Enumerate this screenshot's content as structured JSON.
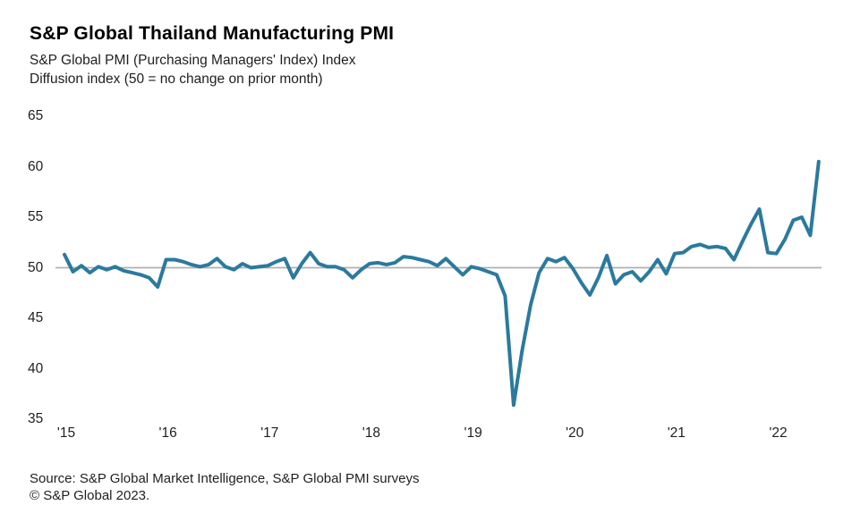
{
  "title": "S&P Global Thailand Manufacturing PMI",
  "subtitle_line1": "S&P Global PMI (Purchasing Managers' Index) Index",
  "subtitle_line2": "Diffusion index (50 = no change on prior month)",
  "source_line1": "Source: S&P Global Market Intelligence, S&P Global PMI surveys",
  "source_line2": "© S&P Global 2023.",
  "chart_data": {
    "type": "line",
    "title": "S&P Global Thailand Manufacturing PMI",
    "ylabel": "Diffusion index (50 = no change on prior month)",
    "ylim": [
      35,
      65
    ],
    "y_ticks": [
      65,
      60,
      55,
      50,
      45,
      40,
      35
    ],
    "x_tick_labels": [
      "'15",
      "'16",
      "'17",
      "'18",
      "'19",
      "'20",
      "'21",
      "'22"
    ],
    "months_per_tick": 12,
    "reference_line": 50,
    "grid": "single horizontal reference line at 50",
    "legend_position": "none",
    "line_color": "#2b7a9e",
    "grid_color": "#b0b0b0",
    "x": [
      "2015-01",
      "2015-02",
      "2015-03",
      "2015-04",
      "2015-05",
      "2015-06",
      "2015-07",
      "2015-08",
      "2015-09",
      "2015-10",
      "2015-11",
      "2015-12",
      "2016-01",
      "2016-02",
      "2016-03",
      "2016-04",
      "2016-05",
      "2016-06",
      "2016-07",
      "2016-08",
      "2016-09",
      "2016-10",
      "2016-11",
      "2016-12",
      "2017-01",
      "2017-02",
      "2017-03",
      "2017-04",
      "2017-05",
      "2017-06",
      "2017-07",
      "2017-08",
      "2017-09",
      "2017-10",
      "2017-11",
      "2017-12",
      "2018-01",
      "2018-02",
      "2018-03",
      "2018-04",
      "2018-05",
      "2018-06",
      "2018-07",
      "2018-08",
      "2018-09",
      "2018-10",
      "2018-11",
      "2018-12",
      "2019-01",
      "2019-02",
      "2019-03",
      "2019-04",
      "2019-05",
      "2019-06",
      "2019-07",
      "2019-08",
      "2019-09",
      "2019-10",
      "2019-11",
      "2019-12",
      "2020-01",
      "2020-02",
      "2020-03",
      "2020-04",
      "2020-05",
      "2020-06",
      "2020-07",
      "2020-08",
      "2020-09",
      "2020-10",
      "2020-11",
      "2020-12",
      "2021-01",
      "2021-02",
      "2021-03",
      "2021-04",
      "2021-05",
      "2021-06",
      "2021-07",
      "2021-08",
      "2021-09",
      "2021-10",
      "2021-11",
      "2021-12",
      "2022-01",
      "2022-02",
      "2022-03",
      "2022-04",
      "2022-05",
      "2022-06"
    ],
    "values": [
      51.3,
      49.6,
      50.2,
      49.5,
      50.1,
      49.8,
      50.1,
      49.7,
      49.5,
      49.3,
      49.0,
      48.1,
      50.8,
      50.8,
      50.6,
      50.3,
      50.1,
      50.3,
      50.9,
      50.1,
      49.8,
      50.4,
      50.0,
      50.1,
      50.2,
      50.6,
      50.9,
      49.0,
      50.4,
      51.5,
      50.4,
      50.1,
      50.1,
      49.8,
      49.0,
      49.8,
      50.4,
      50.5,
      50.3,
      50.5,
      51.1,
      51.0,
      50.8,
      50.6,
      50.2,
      50.9,
      50.1,
      49.3,
      50.1,
      49.9,
      49.6,
      49.3,
      47.2,
      36.4,
      41.8,
      46.3,
      49.5,
      50.9,
      50.6,
      51.0,
      49.9,
      48.5,
      47.3,
      49.0,
      51.2,
      48.4,
      49.3,
      49.6,
      48.7,
      49.6,
      50.8,
      49.4,
      51.4,
      51.5,
      52.1,
      52.3,
      52.0,
      52.1,
      51.9,
      50.8,
      52.6,
      54.3,
      55.8,
      51.5,
      51.4,
      52.8,
      54.7,
      55.0,
      53.2,
      60.5
    ]
  }
}
